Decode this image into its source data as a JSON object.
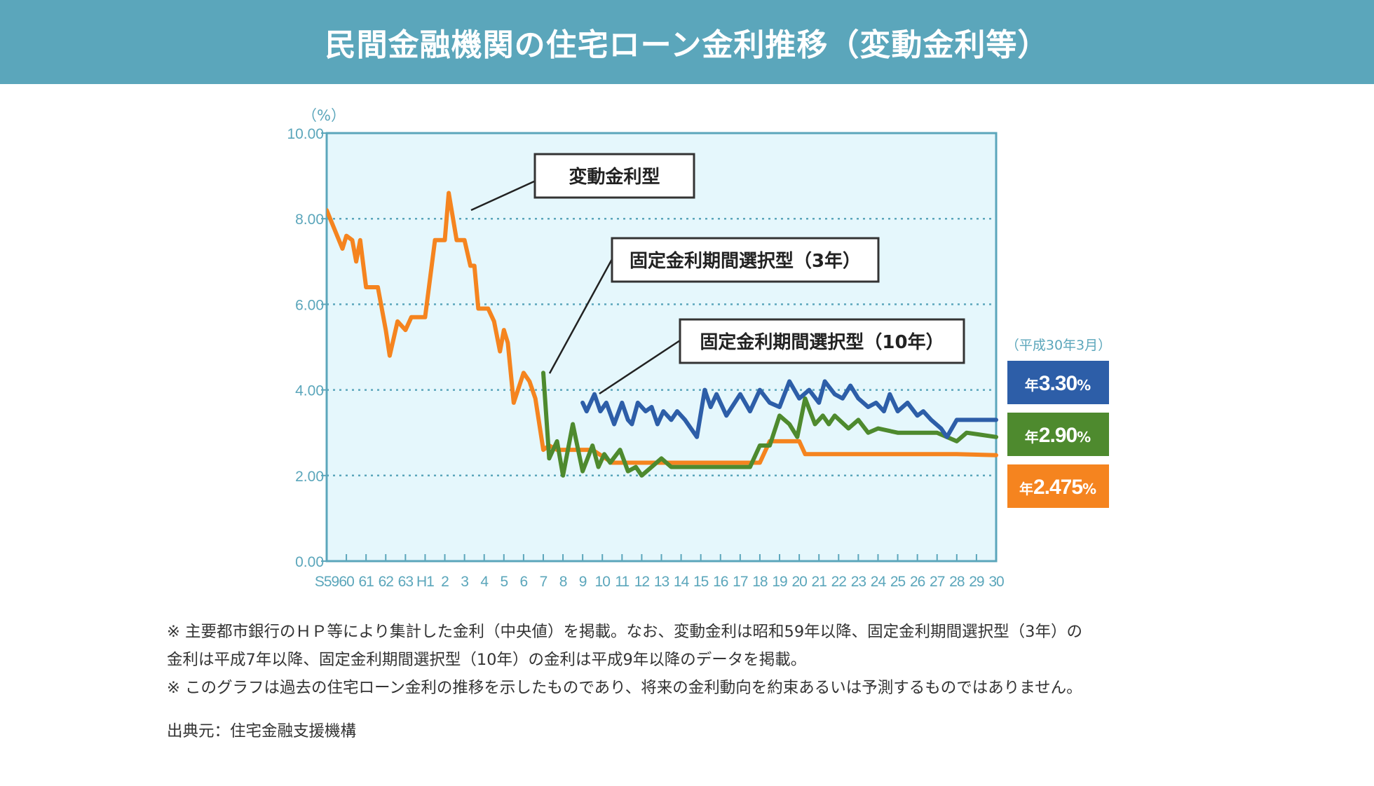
{
  "title": "民間金融機関の住宅ローン金利推移（変動金利等）",
  "chart_data": {
    "type": "line",
    "y_unit_label": "（%）",
    "ylim": [
      0,
      10
    ],
    "y_ticks": [
      "0.00",
      "2.00",
      "4.00",
      "6.00",
      "8.00",
      "10.00"
    ],
    "grid": "dotted horizontal lines",
    "x_tick_labels": [
      "S59",
      "60",
      "61",
      "62",
      "63",
      "H1",
      "2",
      "3",
      "4",
      "5",
      "6",
      "7",
      "8",
      "9",
      "10",
      "11",
      "12",
      "13",
      "14",
      "15",
      "16",
      "17",
      "18",
      "19",
      "20",
      "21",
      "22",
      "23",
      "24",
      "25",
      "26",
      "27",
      "28",
      "29",
      "30"
    ],
    "series": [
      {
        "name": "変動金利型",
        "color": "#f5841f",
        "points": [
          [
            0,
            8.2
          ],
          [
            0.8,
            7.3
          ],
          [
            1.0,
            7.6
          ],
          [
            1.3,
            7.5
          ],
          [
            1.5,
            7.0
          ],
          [
            1.7,
            7.5
          ],
          [
            2.0,
            6.4
          ],
          [
            2.6,
            6.4
          ],
          [
            3.0,
            5.4
          ],
          [
            3.2,
            4.8
          ],
          [
            3.6,
            5.6
          ],
          [
            4.0,
            5.4
          ],
          [
            4.3,
            5.7
          ],
          [
            5.0,
            5.7
          ],
          [
            5.5,
            7.5
          ],
          [
            6.0,
            7.5
          ],
          [
            6.2,
            8.6
          ],
          [
            6.6,
            7.5
          ],
          [
            7.0,
            7.5
          ],
          [
            7.3,
            6.9
          ],
          [
            7.5,
            6.9
          ],
          [
            7.7,
            5.9
          ],
          [
            8.2,
            5.9
          ],
          [
            8.5,
            5.6
          ],
          [
            8.8,
            4.9
          ],
          [
            9.0,
            5.4
          ],
          [
            9.2,
            5.1
          ],
          [
            9.5,
            3.7
          ],
          [
            10.0,
            4.4
          ],
          [
            10.3,
            4.2
          ],
          [
            10.6,
            3.8
          ],
          [
            11.0,
            2.6
          ],
          [
            11.3,
            2.7
          ],
          [
            11.7,
            2.6
          ],
          [
            13.5,
            2.6
          ],
          [
            14.5,
            2.3
          ],
          [
            15.0,
            2.3
          ],
          [
            20.5,
            2.3
          ],
          [
            22.0,
            2.3
          ],
          [
            22.5,
            2.8
          ],
          [
            24.0,
            2.8
          ],
          [
            24.3,
            2.5
          ],
          [
            32.0,
            2.5
          ],
          [
            34.0,
            2.475
          ]
        ]
      },
      {
        "name": "固定金利期間選択型（3年）",
        "color": "#4e8a2e",
        "points": [
          [
            11.0,
            4.4
          ],
          [
            11.3,
            2.4
          ],
          [
            11.7,
            2.8
          ],
          [
            12.0,
            2.0
          ],
          [
            12.5,
            3.2
          ],
          [
            13.0,
            2.1
          ],
          [
            13.5,
            2.7
          ],
          [
            13.8,
            2.2
          ],
          [
            14.1,
            2.5
          ],
          [
            14.4,
            2.3
          ],
          [
            14.9,
            2.6
          ],
          [
            15.3,
            2.1
          ],
          [
            15.7,
            2.2
          ],
          [
            16.0,
            2.0
          ],
          [
            16.5,
            2.2
          ],
          [
            17.0,
            2.4
          ],
          [
            17.5,
            2.2
          ],
          [
            18.5,
            2.2
          ],
          [
            21.5,
            2.2
          ],
          [
            22.0,
            2.7
          ],
          [
            22.5,
            2.7
          ],
          [
            23.0,
            3.4
          ],
          [
            23.5,
            3.2
          ],
          [
            23.9,
            2.9
          ],
          [
            24.3,
            3.8
          ],
          [
            24.8,
            3.2
          ],
          [
            25.2,
            3.4
          ],
          [
            25.5,
            3.2
          ],
          [
            25.8,
            3.4
          ],
          [
            26.5,
            3.1
          ],
          [
            27.0,
            3.3
          ],
          [
            27.5,
            3.0
          ],
          [
            28.0,
            3.1
          ],
          [
            29.0,
            3.0
          ],
          [
            31.0,
            3.0
          ],
          [
            32.0,
            2.8
          ],
          [
            32.5,
            3.0
          ],
          [
            34.0,
            2.9
          ]
        ]
      },
      {
        "name": "固定金利期間選択型（10年）",
        "color": "#2d5ea8",
        "points": [
          [
            13.0,
            3.7
          ],
          [
            13.2,
            3.5
          ],
          [
            13.6,
            3.9
          ],
          [
            13.9,
            3.5
          ],
          [
            14.2,
            3.7
          ],
          [
            14.6,
            3.2
          ],
          [
            15.0,
            3.7
          ],
          [
            15.3,
            3.3
          ],
          [
            15.5,
            3.2
          ],
          [
            15.8,
            3.7
          ],
          [
            16.2,
            3.5
          ],
          [
            16.5,
            3.6
          ],
          [
            16.8,
            3.2
          ],
          [
            17.1,
            3.5
          ],
          [
            17.5,
            3.3
          ],
          [
            17.8,
            3.5
          ],
          [
            18.2,
            3.3
          ],
          [
            18.8,
            2.9
          ],
          [
            19.2,
            4.0
          ],
          [
            19.5,
            3.6
          ],
          [
            19.8,
            3.9
          ],
          [
            20.3,
            3.4
          ],
          [
            21.0,
            3.9
          ],
          [
            21.5,
            3.5
          ],
          [
            22.0,
            4.0
          ],
          [
            22.5,
            3.7
          ],
          [
            23.0,
            3.6
          ],
          [
            23.5,
            4.2
          ],
          [
            24.0,
            3.8
          ],
          [
            24.5,
            4.0
          ],
          [
            25.0,
            3.7
          ],
          [
            25.3,
            4.2
          ],
          [
            25.8,
            3.9
          ],
          [
            26.2,
            3.8
          ],
          [
            26.6,
            4.1
          ],
          [
            27.0,
            3.8
          ],
          [
            27.5,
            3.6
          ],
          [
            27.9,
            3.7
          ],
          [
            28.3,
            3.5
          ],
          [
            28.6,
            3.9
          ],
          [
            29.0,
            3.5
          ],
          [
            29.5,
            3.7
          ],
          [
            30.0,
            3.4
          ],
          [
            30.3,
            3.5
          ],
          [
            30.7,
            3.3
          ],
          [
            31.2,
            3.1
          ],
          [
            31.5,
            2.9
          ],
          [
            32.0,
            3.3
          ],
          [
            33.0,
            3.3
          ],
          [
            34.0,
            3.3
          ]
        ]
      }
    ],
    "annotations": [
      {
        "text": "変動金利型",
        "series": 0
      },
      {
        "text": "固定金利期間選択型（3年）",
        "series": 1
      },
      {
        "text": "固定金利期間選択型（10年）",
        "series": 2
      }
    ],
    "latest_label": "（平成30年3月）",
    "latest_values": [
      {
        "prefix": "年",
        "value": "3.30",
        "unit": "%",
        "color": "#2d5ea8"
      },
      {
        "prefix": "年",
        "value": "2.90",
        "unit": "%",
        "color": "#4e8a2e"
      },
      {
        "prefix": "年",
        "value": "2.475",
        "unit": "%",
        "color": "#f5841f"
      }
    ]
  },
  "notes": [
    "※ 主要都市銀行のＨＰ等により集計した金利（中央値）を掲載。なお、変動金利は昭和59年以降、固定金利期間選択型（3年）の",
    "金利は平成7年以降、固定金利期間選択型（10年）の金利は平成9年以降のデータを掲載。",
    "※ このグラフは過去の住宅ローン金利の推移を示したものであり、将来の金利動向を約束あるいは予測するものではありません。"
  ],
  "source": "出典元：住宅金融支援機構"
}
